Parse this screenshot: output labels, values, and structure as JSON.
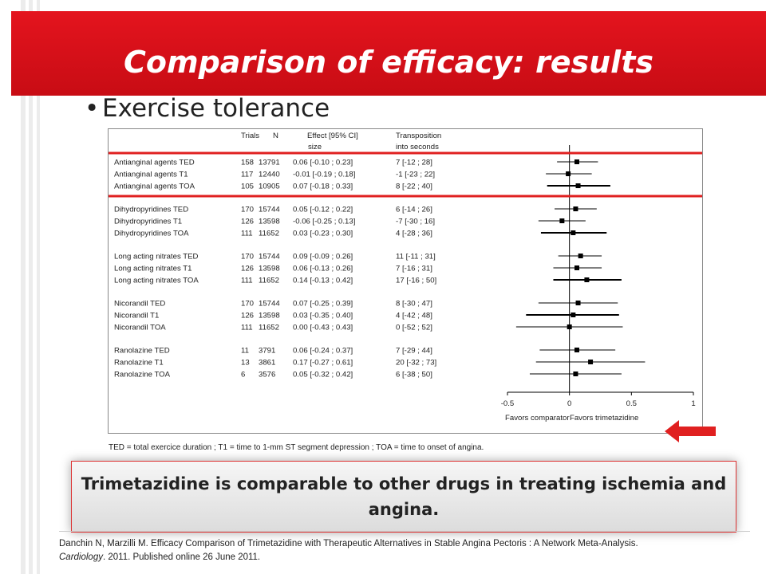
{
  "slide": {
    "title": "Comparison of efficacy: results",
    "bullet": "Exercise tolerance",
    "footnote": "TED = total exercice duration ; T1 = time to 1-mm ST segment depression ; TOA = time to onset of angina.",
    "conclusion": "Trimetazidine is comparable to other drugs in treating ischemia and angina.",
    "citation_line1": "Danchin N, Marzilli M. Efficacy Comparison of Trimetazidine with Therapeutic Alternatives in Stable Angina Pectoris : A Network Meta-Analysis.",
    "citation_journal": "Cardiology",
    "citation_rest": ". 2011. Published online 26 June 2011.",
    "colors": {
      "brand_red": "#d7101a",
      "highlight": "#e02020"
    }
  },
  "chart_data": {
    "type": "forest",
    "columns": {
      "trials": "Trials",
      "n": "N",
      "effect_line1": "Effect [95% CI]",
      "effect_line2": "size",
      "transposition_line1": "Transposition",
      "transposition_line2": "into seconds"
    },
    "xlim": [
      -0.5,
      1
    ],
    "x_ticks": [
      "-0.5",
      "0",
      "0.5",
      "1"
    ],
    "left_label": "Favors comparator",
    "right_label": "Favors trimetazidine",
    "highlighted_group": 0,
    "groups": [
      {
        "rows": [
          {
            "label": "Antianginal agents  TED",
            "trials": "158",
            "n": "13791",
            "effect": "0.06  [-0.10 ; 0.23]",
            "seconds": "7 [-12 ; 28]",
            "est": 0.06,
            "lo": -0.1,
            "hi": 0.23,
            "bold": false
          },
          {
            "label": "Antianginal agents  T1",
            "trials": "117",
            "n": "12440",
            "effect": "-0.01  [-0.19 ; 0.18]",
            "seconds": "-1 [-23 ; 22]",
            "est": -0.01,
            "lo": -0.19,
            "hi": 0.18,
            "bold": false
          },
          {
            "label": "Antianginal agents  TOA",
            "trials": "105",
            "n": "10905",
            "effect": "0.07  [-0.18 ; 0.33]",
            "seconds": "8 [-22 ; 40]",
            "est": 0.07,
            "lo": -0.18,
            "hi": 0.33,
            "bold": true
          }
        ]
      },
      {
        "rows": [
          {
            "label": "Dihydropyridines TED",
            "trials": "170",
            "n": "15744",
            "effect": "0.05  [-0.12 ; 0.22]",
            "seconds": "6 [-14 ; 26]",
            "est": 0.05,
            "lo": -0.12,
            "hi": 0.22,
            "bold": false
          },
          {
            "label": "Dihydropyridines T1",
            "trials": "126",
            "n": "13598",
            "effect": "-0.06  [-0.25 ; 0.13]",
            "seconds": "-7 [-30 ; 16]",
            "est": -0.06,
            "lo": -0.25,
            "hi": 0.13,
            "bold": false
          },
          {
            "label": "Dihydropyridines  TOA",
            "trials": "111",
            "n": "11652",
            "effect": "0.03  [-0.23 ; 0.30]",
            "seconds": "4 [-28 ; 36]",
            "est": 0.03,
            "lo": -0.23,
            "hi": 0.3,
            "bold": true
          }
        ]
      },
      {
        "rows": [
          {
            "label": "Long acting nitrates  TED",
            "trials": "170",
            "n": "15744",
            "effect": "0.09  [-0.09 ; 0.26]",
            "seconds": "11 [-11 ; 31]",
            "est": 0.09,
            "lo": -0.09,
            "hi": 0.26,
            "bold": false
          },
          {
            "label": "Long acting nitrates  T1",
            "trials": "126",
            "n": "13598",
            "effect": "0.06  [-0.13 ; 0.26]",
            "seconds": "7 [-16 ; 31]",
            "est": 0.06,
            "lo": -0.13,
            "hi": 0.26,
            "bold": false
          },
          {
            "label": "Long acting nitrates  TOA",
            "trials": "111",
            "n": "11652",
            "effect": "0.14  [-0.13 ; 0.42]",
            "seconds": "17 [-16 ; 50]",
            "est": 0.14,
            "lo": -0.13,
            "hi": 0.42,
            "bold": true
          }
        ]
      },
      {
        "rows": [
          {
            "label": "Nicorandil  TED",
            "trials": "170",
            "n": "15744",
            "effect": "0.07  [-0.25 ; 0.39]",
            "seconds": "8 [-30 ; 47]",
            "est": 0.07,
            "lo": -0.25,
            "hi": 0.39,
            "bold": false
          },
          {
            "label": "Nicorandil  T1",
            "trials": "126",
            "n": "13598",
            "effect": "0.03  [-0.35 ; 0.40]",
            "seconds": "4 [-42 ; 48]",
            "est": 0.03,
            "lo": -0.35,
            "hi": 0.4,
            "bold": true
          },
          {
            "label": "Nicorandil TOA",
            "trials": "111",
            "n": "11652",
            "effect": "0.00  [-0.43 ; 0.43]",
            "seconds": "0 [-52 ; 52]",
            "est": 0.0,
            "lo": -0.43,
            "hi": 0.43,
            "bold": false
          }
        ]
      },
      {
        "rows": [
          {
            "label": "Ranolazine  TED",
            "trials": "11",
            "n": "3791",
            "effect": "0.06  [-0.24 ; 0.37]",
            "seconds": "7 [-29 ; 44]",
            "est": 0.06,
            "lo": -0.24,
            "hi": 0.37,
            "bold": false
          },
          {
            "label": "Ranolazine  T1",
            "trials": "13",
            "n": "3861",
            "effect": "0.17  [-0.27 ; 0.61]",
            "seconds": "20 [-32 ; 73]",
            "est": 0.17,
            "lo": -0.27,
            "hi": 0.61,
            "bold": false
          },
          {
            "label": "Ranolazine  TOA",
            "trials": "6",
            "n": "3576",
            "effect": "0.05  [-0.32 ; 0.42]",
            "seconds": "6 [-38 ; 50]",
            "est": 0.05,
            "lo": -0.32,
            "hi": 0.42,
            "bold": false
          }
        ]
      }
    ]
  }
}
